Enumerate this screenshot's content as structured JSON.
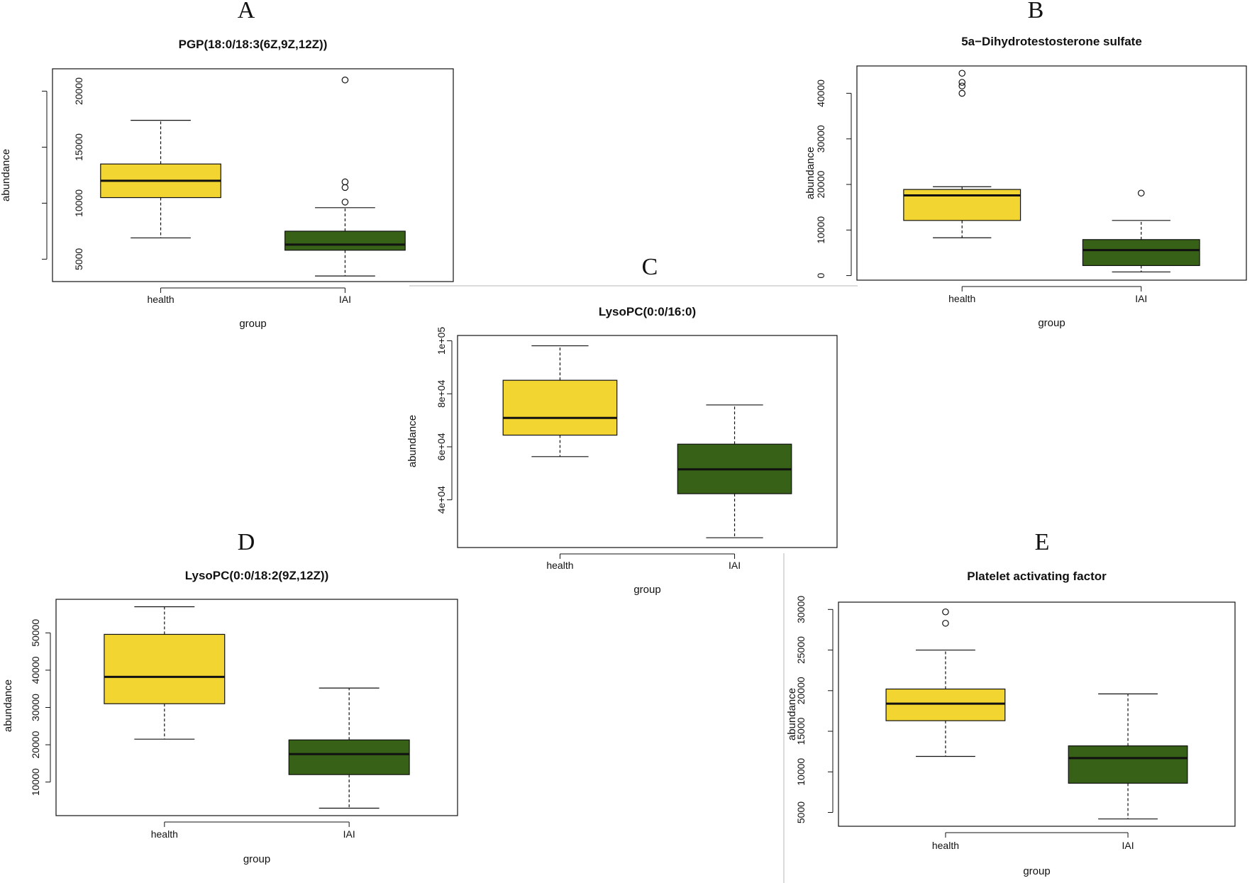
{
  "colors": {
    "health": "#f2d530",
    "iai": "#376117",
    "line": "#111111",
    "divider": "#cfcfcf"
  },
  "chart_data": [
    {
      "id": "A",
      "type": "boxplot",
      "letter": "A",
      "title": "PGP(18:0/18:3(6Z,9Z,12Z))",
      "xlabel": "group",
      "ylabel": "abundance",
      "categories": [
        "health",
        "IAI"
      ],
      "ylim": [
        3000,
        22000
      ],
      "yticks": [
        5000,
        10000,
        15000,
        20000
      ],
      "ytick_labels": [
        "5000",
        "10000",
        "15000",
        "20000"
      ],
      "boxes": [
        {
          "name": "health",
          "color": "health",
          "whisker_low": 6900,
          "q1": 10500,
          "median": 12000,
          "q3": 13500,
          "whisker_high": 17400,
          "outliers": []
        },
        {
          "name": "IAI",
          "color": "iai",
          "whisker_low": 3500,
          "q1": 5800,
          "median": 6300,
          "q3": 7500,
          "whisker_high": 9600,
          "outliers": [
            10100,
            11400,
            11900,
            21000
          ]
        }
      ]
    },
    {
      "id": "B",
      "type": "boxplot",
      "letter": "B",
      "title": "5a−Dihydrotestosterone sulfate",
      "xlabel": "group",
      "ylabel": "abundance",
      "categories": [
        "health",
        "IAI"
      ],
      "ylim": [
        -1000,
        46000
      ],
      "yticks": [
        0,
        10000,
        20000,
        30000,
        40000
      ],
      "ytick_labels": [
        "0",
        "10000",
        "20000",
        "30000",
        "40000"
      ],
      "boxes": [
        {
          "name": "health",
          "color": "health",
          "whisker_low": 8300,
          "q1": 12100,
          "median": 17600,
          "q3": 18900,
          "whisker_high": 19500,
          "outliers": [
            40000,
            41600,
            42400,
            44400
          ]
        },
        {
          "name": "IAI",
          "color": "iai",
          "whisker_low": 800,
          "q1": 2200,
          "median": 5600,
          "q3": 7900,
          "whisker_high": 12100,
          "outliers": [
            18100
          ]
        }
      ]
    },
    {
      "id": "C",
      "type": "boxplot",
      "letter": "C",
      "title": "LysoPC(0:0/16:0)",
      "xlabel": "group",
      "ylabel": "abundance",
      "categories": [
        "health",
        "IAI"
      ],
      "ylim": [
        22000,
        102000
      ],
      "yticks": [
        40000,
        60000,
        80000,
        100000
      ],
      "ytick_labels": [
        "4e+04",
        "6e+04",
        "8e+04",
        "1e+05"
      ],
      "boxes": [
        {
          "name": "health",
          "color": "health",
          "whisker_low": 56300,
          "q1": 64400,
          "median": 70900,
          "q3": 85100,
          "whisker_high": 98100,
          "outliers": []
        },
        {
          "name": "IAI",
          "color": "iai",
          "whisker_low": 25700,
          "q1": 42300,
          "median": 51500,
          "q3": 61000,
          "whisker_high": 75800,
          "outliers": []
        }
      ]
    },
    {
      "id": "D",
      "type": "boxplot",
      "letter": "D",
      "title": "LysoPC(0:0/18:2(9Z,12Z))",
      "xlabel": "group",
      "ylabel": "abundance",
      "categories": [
        "health",
        "IAI"
      ],
      "ylim": [
        1000,
        59000
      ],
      "yticks": [
        10000,
        20000,
        30000,
        40000,
        50000
      ],
      "ytick_labels": [
        "10000",
        "20000",
        "30000",
        "40000",
        "50000"
      ],
      "boxes": [
        {
          "name": "health",
          "color": "health",
          "whisker_low": 21500,
          "q1": 31000,
          "median": 38200,
          "q3": 49600,
          "whisker_high": 57000,
          "outliers": []
        },
        {
          "name": "IAI",
          "color": "iai",
          "whisker_low": 3000,
          "q1": 12000,
          "median": 17500,
          "q3": 21300,
          "whisker_high": 35200,
          "outliers": []
        }
      ]
    },
    {
      "id": "E",
      "type": "boxplot",
      "letter": "E",
      "title": "Platelet activating factor",
      "xlabel": "group",
      "ylabel": "abundance",
      "categories": [
        "health",
        "IAI"
      ],
      "ylim": [
        3300,
        30900
      ],
      "yticks": [
        5000,
        10000,
        15000,
        20000,
        25000,
        30000
      ],
      "ytick_labels": [
        "5000",
        "10000",
        "15000",
        "20000",
        "25000",
        "30000"
      ],
      "boxes": [
        {
          "name": "health",
          "color": "health",
          "whisker_low": 11900,
          "q1": 16300,
          "median": 18400,
          "q3": 20200,
          "whisker_high": 25000,
          "outliers": [
            28300,
            29700
          ]
        },
        {
          "name": "IAI",
          "color": "iai",
          "whisker_low": 4200,
          "q1": 8600,
          "median": 11700,
          "q3": 13200,
          "whisker_high": 19600,
          "outliers": []
        }
      ]
    }
  ]
}
